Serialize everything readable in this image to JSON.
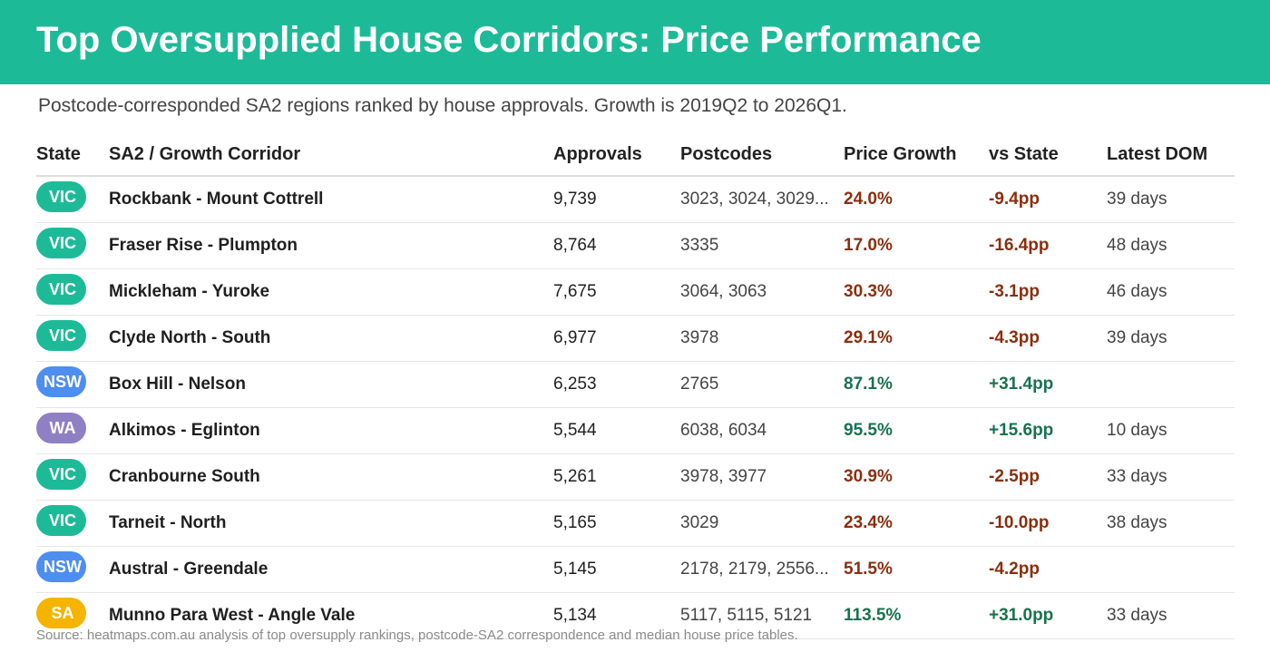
{
  "title": "Top Oversupplied House Corridors: Price Performance",
  "subtitle": "Postcode-corresponded SA2 regions ranked by house approvals. Growth is 2019Q2 to 2026Q1.",
  "source": "Source: heatmaps.com.au analysis of top oversupply rankings, postcode-SA2 correspondence and median house price tables.",
  "colors": {
    "banner": "#1dba98",
    "VIC": "#1dba98",
    "NSW": "#4d8ef0",
    "WA": "#8f7fc4",
    "SA": "#f5b400",
    "negative": "#8b2e0d",
    "positive": "#17724f"
  },
  "chart_data": {
    "type": "table",
    "columns": [
      "State",
      "SA2 / Growth Corridor",
      "Approvals",
      "Postcodes",
      "Price Growth",
      "vs State",
      "Latest DOM"
    ],
    "rows": [
      {
        "state": "VIC",
        "corridor": "Rockbank - Mount Cottrell",
        "approvals": "9,739",
        "postcodes": "3023, 3024, 3029...",
        "growth": "24.0%",
        "vs_state": "-9.4pp",
        "dom": "39 days",
        "sign": "neg"
      },
      {
        "state": "VIC",
        "corridor": "Fraser Rise - Plumpton",
        "approvals": "8,764",
        "postcodes": "3335",
        "growth": "17.0%",
        "vs_state": "-16.4pp",
        "dom": "48 days",
        "sign": "neg"
      },
      {
        "state": "VIC",
        "corridor": "Mickleham - Yuroke",
        "approvals": "7,675",
        "postcodes": "3064, 3063",
        "growth": "30.3%",
        "vs_state": "-3.1pp",
        "dom": "46 days",
        "sign": "neg"
      },
      {
        "state": "VIC",
        "corridor": "Clyde North - South",
        "approvals": "6,977",
        "postcodes": "3978",
        "growth": "29.1%",
        "vs_state": "-4.3pp",
        "dom": "39 days",
        "sign": "neg"
      },
      {
        "state": "NSW",
        "corridor": "Box Hill - Nelson",
        "approvals": "6,253",
        "postcodes": "2765",
        "growth": "87.1%",
        "vs_state": "+31.4pp",
        "dom": "",
        "sign": "pos"
      },
      {
        "state": "WA",
        "corridor": "Alkimos - Eglinton",
        "approvals": "5,544",
        "postcodes": "6038, 6034",
        "growth": "95.5%",
        "vs_state": "+15.6pp",
        "dom": "10 days",
        "sign": "pos"
      },
      {
        "state": "VIC",
        "corridor": "Cranbourne South",
        "approvals": "5,261",
        "postcodes": "3978, 3977",
        "growth": "30.9%",
        "vs_state": "-2.5pp",
        "dom": "33 days",
        "sign": "neg"
      },
      {
        "state": "VIC",
        "corridor": "Tarneit - North",
        "approvals": "5,165",
        "postcodes": "3029",
        "growth": "23.4%",
        "vs_state": "-10.0pp",
        "dom": "38 days",
        "sign": "neg"
      },
      {
        "state": "NSW",
        "corridor": "Austral - Greendale",
        "approvals": "5,145",
        "postcodes": "2178, 2179, 2556...",
        "growth": "51.5%",
        "vs_state": "-4.2pp",
        "dom": "",
        "sign": "neg"
      },
      {
        "state": "SA",
        "corridor": "Munno Para West - Angle Vale",
        "approvals": "5,134",
        "postcodes": "5117, 5115, 5121",
        "growth": "113.5%",
        "vs_state": "+31.0pp",
        "dom": "33 days",
        "sign": "pos"
      }
    ]
  }
}
